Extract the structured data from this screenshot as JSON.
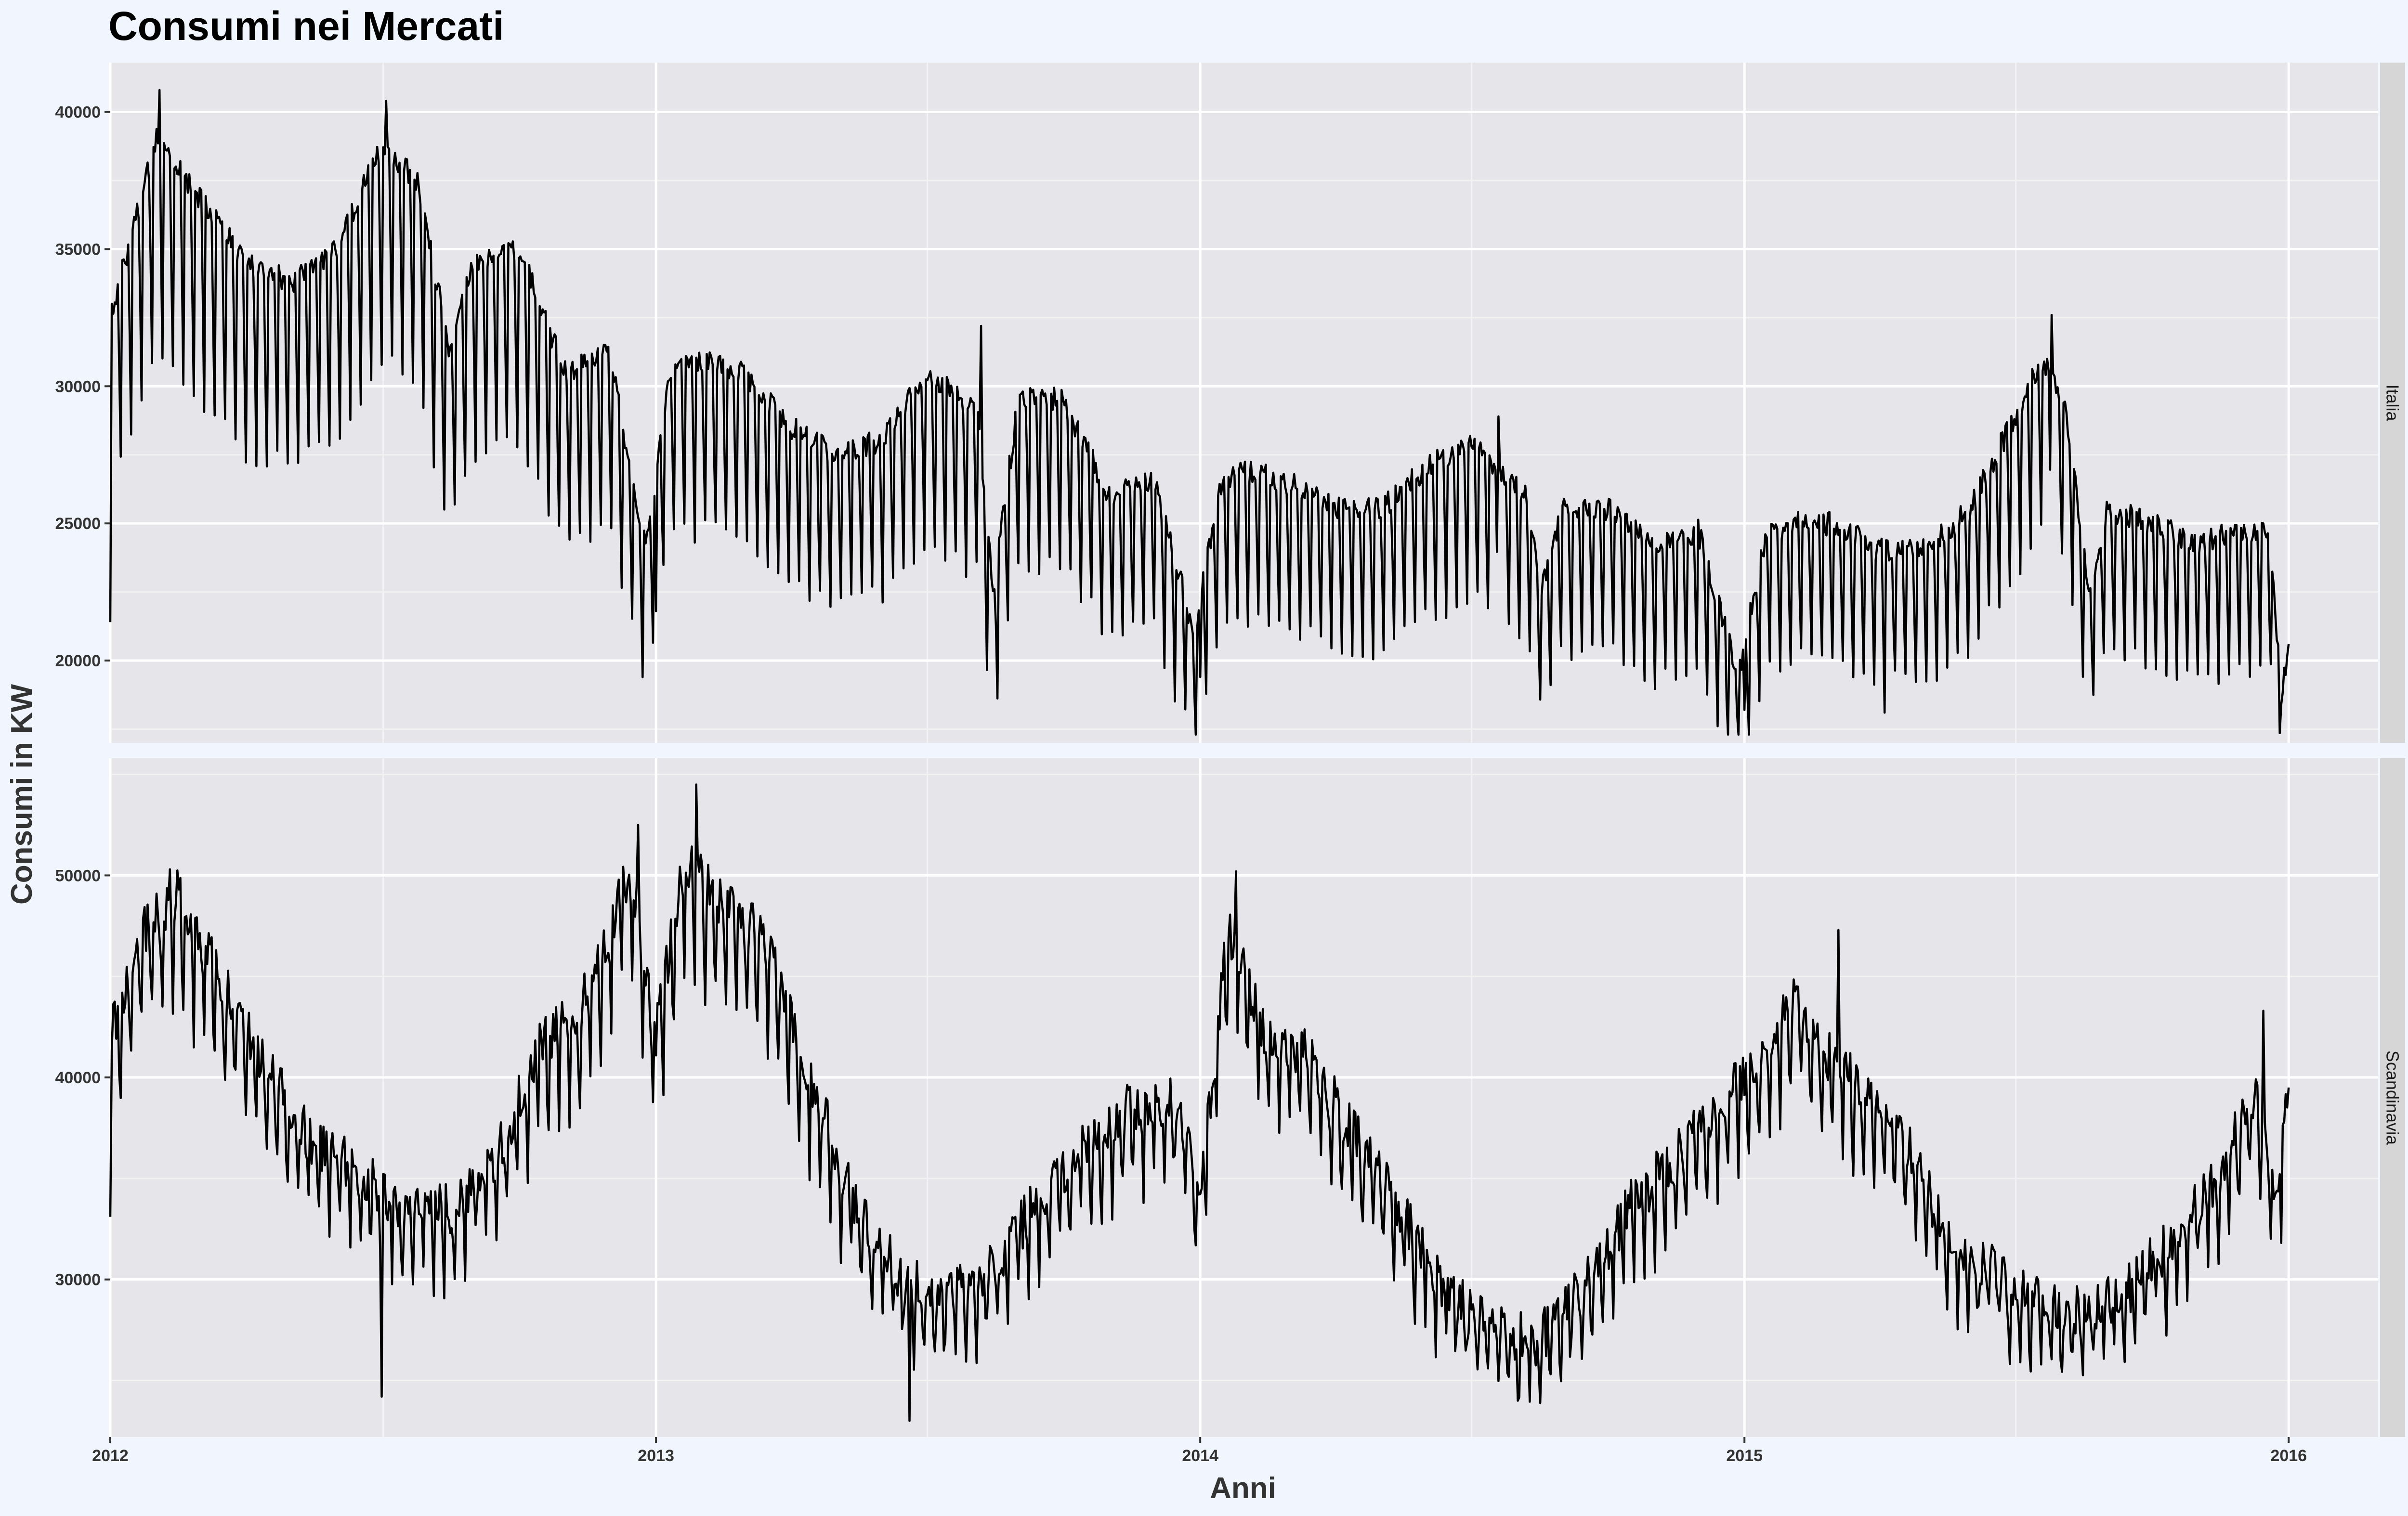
{
  "chart_data": {
    "type": "line",
    "title": "Consumi nei Mercati",
    "xlabel": "Anni",
    "ylabel": "Consumi in KW",
    "grid": true,
    "legend": "none",
    "x_range": [
      "2012-01-01",
      "2016-03-01"
    ],
    "x_ticks": [
      "2012",
      "2013",
      "2014",
      "2015",
      "2016"
    ],
    "line_color": "#000000",
    "panel_background": "#e5e5ea",
    "strip_background": "#d6d6d6",
    "page_background": "#f1f6fe",
    "facets": [
      {
        "strip": "Italia",
        "ylim": [
          17000,
          41800
        ],
        "y_ticks": [
          20000,
          25000,
          30000,
          35000,
          40000
        ],
        "y_tick_labels": [
          "20000",
          "25000",
          "30000",
          "35000",
          "40000"
        ],
        "season": [
          [
            "2012-01-01",
            32500
          ],
          [
            "2012-02-01",
            39000
          ],
          [
            "2012-03-01",
            36800
          ],
          [
            "2012-04-01",
            34500
          ],
          [
            "2012-05-01",
            33800
          ],
          [
            "2012-06-01",
            35000
          ],
          [
            "2012-07-01",
            38800
          ],
          [
            "2012-07-25",
            37500
          ],
          [
            "2012-08-15",
            31500
          ],
          [
            "2012-09-01",
            34500
          ],
          [
            "2012-10-01",
            35000
          ],
          [
            "2012-11-01",
            30500
          ],
          [
            "2012-12-01",
            31200
          ],
          [
            "2012-12-25",
            24000
          ],
          [
            "2013-01-10",
            30500
          ],
          [
            "2013-02-01",
            31000
          ],
          [
            "2013-03-01",
            30500
          ],
          [
            "2013-04-01",
            28500
          ],
          [
            "2013-05-01",
            27500
          ],
          [
            "2013-06-01",
            28000
          ],
          [
            "2013-07-01",
            30500
          ],
          [
            "2013-08-05",
            29000
          ],
          [
            "2013-08-15",
            22500
          ],
          [
            "2013-09-01",
            29500
          ],
          [
            "2013-10-01",
            29500
          ],
          [
            "2013-11-01",
            26000
          ],
          [
            "2013-12-01",
            26500
          ],
          [
            "2013-12-28",
            21000
          ],
          [
            "2014-01-15",
            26500
          ],
          [
            "2014-02-01",
            27000
          ],
          [
            "2014-03-01",
            26500
          ],
          [
            "2014-04-01",
            25500
          ],
          [
            "2014-05-01",
            25500
          ],
          [
            "2014-06-01",
            27000
          ],
          [
            "2014-07-01",
            28000
          ],
          [
            "2014-08-08",
            26000
          ],
          [
            "2014-08-18",
            22500
          ],
          [
            "2014-09-01",
            25500
          ],
          [
            "2014-10-01",
            25500
          ],
          [
            "2014-11-01",
            24200
          ],
          [
            "2014-12-01",
            24700
          ],
          [
            "2014-12-28",
            19500
          ],
          [
            "2015-01-15",
            24500
          ],
          [
            "2015-02-01",
            25000
          ],
          [
            "2015-03-01",
            25000
          ],
          [
            "2015-04-01",
            24000
          ],
          [
            "2015-05-01",
            24000
          ],
          [
            "2015-06-01",
            25500
          ],
          [
            "2015-07-20",
            31000
          ],
          [
            "2015-08-05",
            29000
          ],
          [
            "2015-08-20",
            22500
          ],
          [
            "2015-09-01",
            25500
          ],
          [
            "2015-10-01",
            25000
          ],
          [
            "2015-11-01",
            24200
          ],
          [
            "2015-12-01",
            24800
          ],
          [
            "2015-12-20",
            24500
          ],
          [
            "2015-12-27",
            18500
          ],
          [
            "2016-01-01",
            20500
          ]
        ],
        "weekly_drop": 0.2,
        "noise": 450,
        "series": [
          {
            "x": "2012-01-01",
            "y": 21400
          },
          {
            "x": "2012-01-05",
            "y": 33000
          },
          {
            "x": "2012-02-03",
            "y": 40800
          },
          {
            "x": "2012-07-04",
            "y": 40400
          },
          {
            "x": "2013-01-01",
            "y": 21800
          },
          {
            "x": "2013-08-07",
            "y": 32200
          },
          {
            "x": "2014-01-01",
            "y": 19400
          },
          {
            "x": "2014-07-20",
            "y": 28900
          },
          {
            "x": "2015-01-01",
            "y": 18200
          },
          {
            "x": "2015-04-05",
            "y": 18100
          },
          {
            "x": "2015-07-26",
            "y": 32600
          },
          {
            "x": "2015-12-27",
            "y": 18400
          },
          {
            "x": "2016-01-01",
            "y": 20600
          }
        ]
      },
      {
        "strip": "Scandinavia",
        "ylim": [
          22200,
          55800
        ],
        "y_ticks": [
          30000,
          40000,
          50000
        ],
        "y_tick_labels": [
          "30000",
          "40000",
          "50000"
        ],
        "season": [
          [
            "2012-01-01",
            42000
          ],
          [
            "2012-01-25",
            47500
          ],
          [
            "2012-02-15",
            49000
          ],
          [
            "2012-03-15",
            45000
          ],
          [
            "2012-04-15",
            40500
          ],
          [
            "2012-05-15",
            37000
          ],
          [
            "2012-06-15",
            35500
          ],
          [
            "2012-07-15",
            33500
          ],
          [
            "2012-08-15",
            33500
          ],
          [
            "2012-09-15",
            36000
          ],
          [
            "2012-10-15",
            41500
          ],
          [
            "2012-11-15",
            44000
          ],
          [
            "2012-12-15",
            50500
          ],
          [
            "2013-01-01",
            42000
          ],
          [
            "2013-01-20",
            51000
          ],
          [
            "2013-02-15",
            48500
          ],
          [
            "2013-03-15",
            47000
          ],
          [
            "2013-04-15",
            40000
          ],
          [
            "2013-05-15",
            33500
          ],
          [
            "2013-06-15",
            30000
          ],
          [
            "2013-07-15",
            29000
          ],
          [
            "2013-08-15",
            30500
          ],
          [
            "2013-09-15",
            34000
          ],
          [
            "2013-10-15",
            36500
          ],
          [
            "2013-11-15",
            38500
          ],
          [
            "2013-12-15",
            39000
          ],
          [
            "2014-01-01",
            34500
          ],
          [
            "2014-01-20",
            47500
          ],
          [
            "2014-02-15",
            42000
          ],
          [
            "2014-03-15",
            41000
          ],
          [
            "2014-04-15",
            37000
          ],
          [
            "2014-05-15",
            33500
          ],
          [
            "2014-06-15",
            29500
          ],
          [
            "2014-07-15",
            27500
          ],
          [
            "2014-08-15",
            27000
          ],
          [
            "2014-09-15",
            29500
          ],
          [
            "2014-10-15",
            33500
          ],
          [
            "2014-11-15",
            36000
          ],
          [
            "2014-12-15",
            38500
          ],
          [
            "2015-01-10",
            41000
          ],
          [
            "2015-02-05",
            44000
          ],
          [
            "2015-02-20",
            41500
          ],
          [
            "2015-03-15",
            40000
          ],
          [
            "2015-04-15",
            37500
          ],
          [
            "2015-05-15",
            32500
          ],
          [
            "2015-06-15",
            30500
          ],
          [
            "2015-07-15",
            29000
          ],
          [
            "2015-08-15",
            28500
          ],
          [
            "2015-09-15",
            29500
          ],
          [
            "2015-10-15",
            32000
          ],
          [
            "2015-11-15",
            35000
          ],
          [
            "2015-12-10",
            39500
          ],
          [
            "2015-12-22",
            34000
          ],
          [
            "2016-01-01",
            39500
          ]
        ],
        "weekly_drop": 0.1,
        "noise": 1300,
        "series": [
          {
            "x": "2012-01-01",
            "y": 33100
          },
          {
            "x": "2012-02-10",
            "y": 50300
          },
          {
            "x": "2012-07-01",
            "y": 24200
          },
          {
            "x": "2012-12-20",
            "y": 52500
          },
          {
            "x": "2013-01-28",
            "y": 54500
          },
          {
            "x": "2013-06-20",
            "y": 23000
          },
          {
            "x": "2014-01-25",
            "y": 50200
          },
          {
            "x": "2014-08-02",
            "y": 24000
          },
          {
            "x": "2015-03-05",
            "y": 47300
          },
          {
            "x": "2015-12-15",
            "y": 43300
          },
          {
            "x": "2016-01-01",
            "y": 39500
          }
        ]
      }
    ]
  }
}
